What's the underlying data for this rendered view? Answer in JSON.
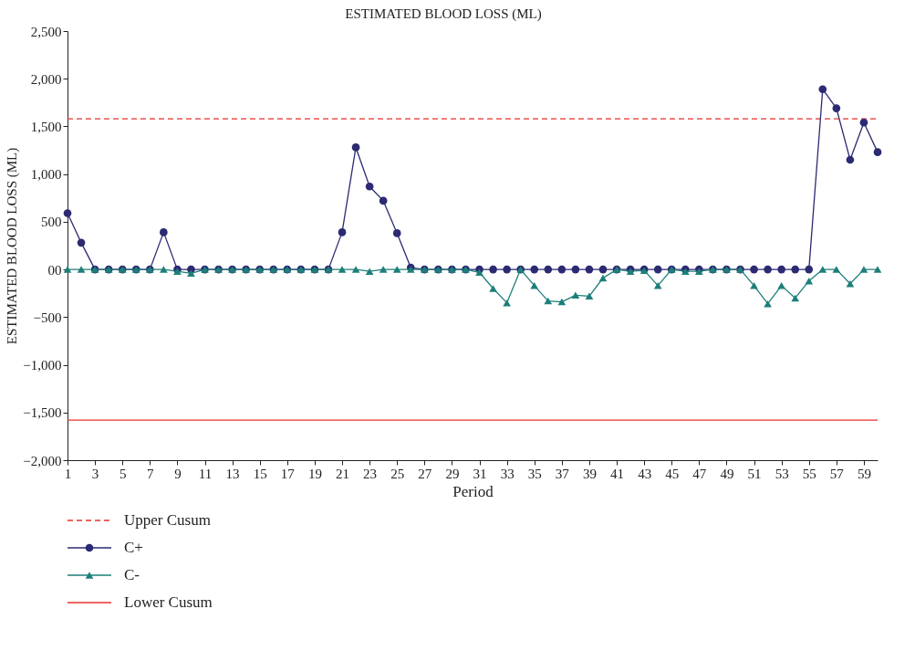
{
  "chart_data": {
    "type": "line",
    "title": "ESTIMATED BLOOD LOSS (ML)",
    "xlabel": "Period",
    "ylabel": "ESTIMATED BLOOD LOSS (ML)",
    "x": [
      1,
      2,
      3,
      4,
      5,
      6,
      7,
      8,
      9,
      10,
      11,
      12,
      13,
      14,
      15,
      16,
      17,
      18,
      19,
      20,
      21,
      22,
      23,
      24,
      25,
      26,
      27,
      28,
      29,
      30,
      31,
      32,
      33,
      34,
      35,
      36,
      37,
      38,
      39,
      40,
      41,
      42,
      43,
      44,
      45,
      46,
      47,
      48,
      49,
      50,
      51,
      52,
      53,
      54,
      55,
      56,
      57,
      58,
      59,
      60
    ],
    "xlim": [
      1,
      60
    ],
    "xticks": [
      1,
      3,
      5,
      7,
      9,
      11,
      13,
      15,
      17,
      19,
      21,
      23,
      25,
      27,
      29,
      31,
      33,
      35,
      37,
      39,
      41,
      43,
      45,
      47,
      49,
      51,
      53,
      55,
      57,
      59
    ],
    "ylim": [
      -2000,
      2500
    ],
    "yticks": [
      {
        "value": 2500,
        "label": "2,500"
      },
      {
        "value": 2000,
        "label": "2,000"
      },
      {
        "value": 1500,
        "label": "1,500"
      },
      {
        "value": 1000,
        "label": "1,000"
      },
      500,
      {
        "value": 0,
        "label": "00"
      },
      {
        "value": -500,
        "label": "−500"
      },
      {
        "value": -1000,
        "label": "−1,000"
      },
      {
        "value": -1500,
        "label": "−1,500"
      },
      {
        "value": -2000,
        "label": "−2,000"
      }
    ],
    "grid": false,
    "legend": "bottom left",
    "series": [
      {
        "name": "Upper Cusum",
        "color": "#e8302c",
        "marker": "none",
        "line_style": "dashed",
        "values": [
          1580,
          1580,
          1580,
          1580,
          1580,
          1580,
          1580,
          1580,
          1580,
          1580,
          1580,
          1580,
          1580,
          1580,
          1580,
          1580,
          1580,
          1580,
          1580,
          1580,
          1580,
          1580,
          1580,
          1580,
          1580,
          1580,
          1580,
          1580,
          1580,
          1580,
          1580,
          1580,
          1580,
          1580,
          1580,
          1580,
          1580,
          1580,
          1580,
          1580,
          1580,
          1580,
          1580,
          1580,
          1580,
          1580,
          1580,
          1580,
          1580,
          1580,
          1580,
          1580,
          1580,
          1580,
          1580,
          1580,
          1580,
          1580,
          1580,
          1580
        ]
      },
      {
        "name": "C+",
        "color": "#2b2a72",
        "marker": "circle",
        "line_style": "solid",
        "values": [
          590,
          280,
          0,
          0,
          0,
          0,
          0,
          390,
          0,
          0,
          0,
          0,
          0,
          0,
          0,
          0,
          0,
          0,
          0,
          0,
          390,
          1280,
          870,
          720,
          380,
          20,
          0,
          0,
          0,
          0,
          0,
          0,
          0,
          0,
          0,
          0,
          0,
          0,
          0,
          0,
          0,
          0,
          0,
          0,
          0,
          0,
          0,
          0,
          0,
          0,
          0,
          0,
          0,
          0,
          0,
          1890,
          1690,
          1150,
          1540,
          1230
        ]
      },
      {
        "name": "C-",
        "color": "#1e7f7a",
        "marker": "triangle",
        "line_style": "solid",
        "values": [
          0,
          0,
          0,
          0,
          0,
          0,
          0,
          0,
          -20,
          -40,
          0,
          0,
          0,
          0,
          0,
          0,
          0,
          0,
          0,
          0,
          0,
          0,
          -20,
          0,
          0,
          0,
          0,
          0,
          0,
          0,
          -30,
          -200,
          -350,
          0,
          -170,
          -330,
          -340,
          -270,
          -280,
          -90,
          0,
          -20,
          -10,
          -170,
          0,
          -20,
          -20,
          0,
          0,
          0,
          -170,
          -360,
          -170,
          -300,
          -120,
          0,
          0,
          -150,
          0,
          0
        ]
      },
      {
        "name": "Lower Cusum",
        "color": "#e8302c",
        "marker": "none",
        "line_style": "solid",
        "values": [
          -1580,
          -1580,
          -1580,
          -1580,
          -1580,
          -1580,
          -1580,
          -1580,
          -1580,
          -1580,
          -1580,
          -1580,
          -1580,
          -1580,
          -1580,
          -1580,
          -1580,
          -1580,
          -1580,
          -1580,
          -1580,
          -1580,
          -1580,
          -1580,
          -1580,
          -1580,
          -1580,
          -1580,
          -1580,
          -1580,
          -1580,
          -1580,
          -1580,
          -1580,
          -1580,
          -1580,
          -1580,
          -1580,
          -1580,
          -1580,
          -1580,
          -1580,
          -1580,
          -1580,
          -1580,
          -1580,
          -1580,
          -1580,
          -1580,
          -1580,
          -1580,
          -1580,
          -1580,
          -1580,
          -1580,
          -1580,
          -1580,
          -1580,
          -1580,
          -1580
        ]
      }
    ]
  }
}
